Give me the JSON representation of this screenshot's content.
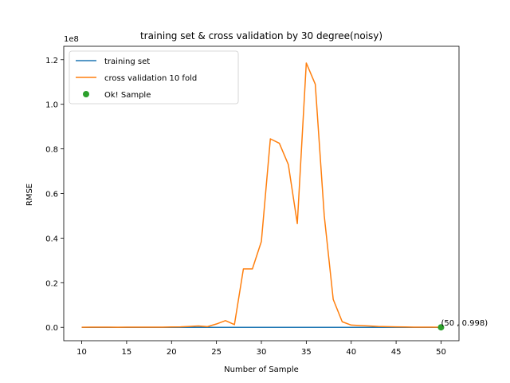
{
  "chart_data": {
    "type": "line",
    "title": "training set & cross validation by 30 degree(noisy)",
    "xlabel": "Number of Sample",
    "ylabel": "RMSE",
    "y_offset_label": "1e8",
    "xlim": [
      8,
      52
    ],
    "ylim": [
      -0.06,
      1.26
    ],
    "x_ticks": [
      10,
      15,
      20,
      25,
      30,
      35,
      40,
      45,
      50
    ],
    "y_ticks": [
      0.0,
      0.2,
      0.4,
      0.6,
      0.8,
      1.0,
      1.2
    ],
    "y_tick_labels": [
      "0.0",
      "0.2",
      "0.4",
      "0.6",
      "0.8",
      "1.0",
      "1.2"
    ],
    "grid": false,
    "legend_position": "top-left",
    "series": [
      {
        "name": "training set",
        "color": "#1f77b4",
        "kind": "line",
        "x": [
          10,
          11,
          12,
          13,
          14,
          15,
          16,
          17,
          18,
          19,
          20,
          21,
          22,
          23,
          24,
          25,
          26,
          27,
          28,
          29,
          30,
          31,
          32,
          33,
          34,
          35,
          36,
          37,
          38,
          39,
          40,
          41,
          42,
          43,
          44,
          45,
          46,
          47,
          48,
          49,
          50
        ],
        "y": [
          0,
          0,
          0,
          0,
          0,
          0,
          0,
          0,
          0,
          0,
          0,
          0,
          0,
          0,
          0,
          0,
          0,
          0,
          0,
          0,
          0,
          0,
          0,
          0,
          0,
          0,
          0,
          0,
          0,
          0,
          0,
          0,
          0,
          0,
          0,
          0,
          0,
          0,
          0,
          0,
          0
        ]
      },
      {
        "name": "cross validation 10 fold",
        "color": "#ff7f0e",
        "kind": "line",
        "x": [
          10,
          11,
          12,
          13,
          14,
          15,
          16,
          17,
          18,
          19,
          20,
          21,
          22,
          23,
          24,
          25,
          26,
          27,
          28,
          29,
          30,
          31,
          32,
          33,
          34,
          35,
          36,
          37,
          38,
          39,
          40,
          41,
          42,
          43,
          44,
          45,
          46,
          47,
          48,
          49,
          50
        ],
        "y": [
          0.0005,
          0.0008,
          0.0006,
          0.0007,
          0.0005,
          0.0006,
          0.0008,
          0.0007,
          0.0009,
          0.0006,
          0.0015,
          0.002,
          0.004,
          0.006,
          0.003,
          0.015,
          0.03,
          0.012,
          0.262,
          0.262,
          0.385,
          0.845,
          0.825,
          0.73,
          0.465,
          1.185,
          1.09,
          0.5,
          0.125,
          0.025,
          0.01,
          0.008,
          0.006,
          0.004,
          0.003,
          0.002,
          0.0015,
          0.001,
          0.001,
          0.0008,
          0.0005
        ]
      },
      {
        "name": "Ok! Sample",
        "color": "#2ca02c",
        "kind": "point",
        "x": [
          50
        ],
        "y": [
          0
        ]
      }
    ],
    "annotations": [
      {
        "text": "(50 , 0.998)",
        "x": 50,
        "y": 0
      }
    ]
  }
}
